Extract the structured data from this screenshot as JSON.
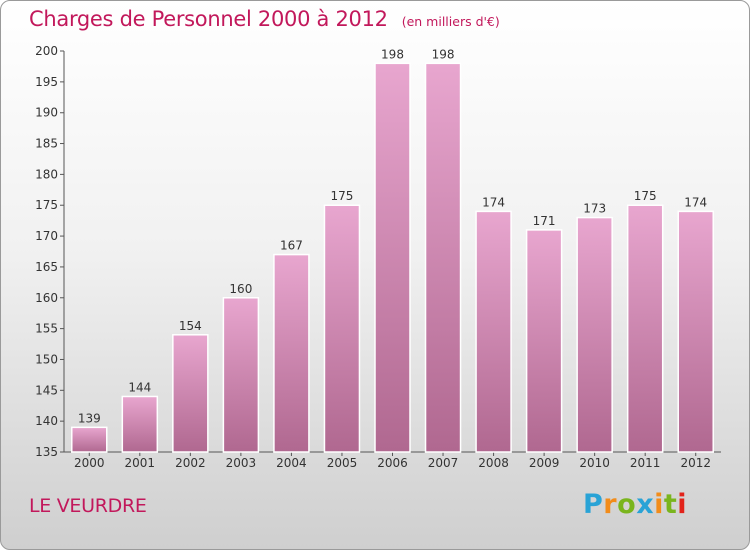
{
  "header": {
    "title": "Charges de Personnel 2000 à 2012",
    "unit": "(en milliers d'€)"
  },
  "footer": {
    "place": "LE VEURDRE",
    "brand": "Proxiti"
  },
  "colors": {
    "accent": "#c2185b",
    "bar_top": "#e8a6cf",
    "bar_bottom": "#b06890"
  },
  "chart_data": {
    "type": "bar",
    "title": "Charges de Personnel 2000 à 2012",
    "subtitle": "(en milliers d'€)",
    "xlabel": "",
    "ylabel": "",
    "categories": [
      "2000",
      "2001",
      "2002",
      "2003",
      "2004",
      "2005",
      "2006",
      "2007",
      "2008",
      "2009",
      "2010",
      "2011",
      "2012"
    ],
    "values": [
      139,
      144,
      154,
      160,
      167,
      175,
      198,
      198,
      174,
      171,
      173,
      175,
      174
    ],
    "ylim": [
      135,
      200
    ],
    "yticks": [
      135,
      140,
      145,
      150,
      155,
      160,
      165,
      170,
      175,
      180,
      185,
      190,
      195,
      200
    ],
    "grid": false,
    "legend": "none",
    "data_labels": true
  }
}
